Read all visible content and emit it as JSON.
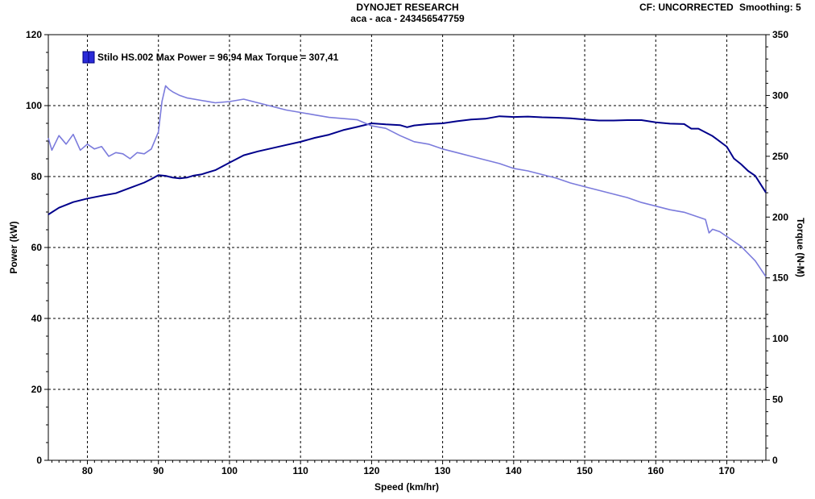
{
  "header": {
    "title": "DYNOJET RESEARCH",
    "subtitle": "aca - aca - 243456547759",
    "cf_text": "CF: UNCORRECTED",
    "smoothing_text": "Smoothing: 5"
  },
  "colors": {
    "power": "#00008b",
    "torque": "#7b7bdc",
    "grid": "#000000",
    "legend_swatch": "#2a2ad8"
  },
  "chart_data": {
    "type": "line",
    "title": "DYNOJET RESEARCH",
    "xlabel": "Speed (km/hr)",
    "ylabel": "Power (kW)",
    "y2label": "Torque (N-M)",
    "xlim": [
      74.5,
      175.5
    ],
    "ylim": [
      0,
      120
    ],
    "y2lim": [
      0,
      350
    ],
    "xticks": [
      80,
      90,
      100,
      110,
      120,
      130,
      140,
      150,
      160,
      170
    ],
    "yticks": [
      0,
      20,
      40,
      60,
      80,
      100,
      120
    ],
    "y2ticks": [
      0,
      50,
      100,
      150,
      200,
      250,
      300,
      350
    ],
    "grid": true,
    "legend": {
      "position": "top-left",
      "text": "Stilo HS.002 Max Power = 96,94 Max Torque = 307,41"
    },
    "series": [
      {
        "name": "Power",
        "axis": "left",
        "x": [
          74.5,
          76,
          78,
          80,
          82,
          84,
          86,
          88,
          89,
          90,
          91,
          92,
          93,
          94,
          95,
          96,
          98,
          100,
          102,
          104,
          106,
          108,
          110,
          112,
          114,
          116,
          118,
          120,
          122,
          124,
          125,
          126,
          128,
          130,
          132,
          134,
          136,
          138,
          140,
          142,
          144,
          146,
          148,
          150,
          152,
          154,
          156,
          158,
          160,
          162,
          164,
          165,
          166,
          168,
          170,
          171,
          172,
          173,
          174,
          175.5
        ],
        "y": [
          69.3,
          71.2,
          72.8,
          73.8,
          74.6,
          75.3,
          76.8,
          78.3,
          79.3,
          80.4,
          80.2,
          79.7,
          79.5,
          79.7,
          80.3,
          80.6,
          81.8,
          83.9,
          86.0,
          87.1,
          88.0,
          88.9,
          89.8,
          90.9,
          91.8,
          93.1,
          94.0,
          95.0,
          94.7,
          94.5,
          93.9,
          94.4,
          94.8,
          95.0,
          95.6,
          96.1,
          96.3,
          97.0,
          96.8,
          96.9,
          96.7,
          96.6,
          96.4,
          96.1,
          95.8,
          95.8,
          95.9,
          95.9,
          95.3,
          94.9,
          94.8,
          93.5,
          93.5,
          91.4,
          88.4,
          85.1,
          83.5,
          81.6,
          80.2,
          75.5
        ]
      },
      {
        "name": "Torque",
        "axis": "right",
        "x": [
          74.5,
          75,
          76,
          77,
          78,
          79,
          80,
          81,
          82,
          83,
          84,
          85,
          86,
          87,
          88,
          89,
          90,
          90.5,
          91,
          91.5,
          92,
          93,
          94,
          96,
          98,
          100,
          102,
          104,
          106,
          108,
          110,
          112,
          114,
          116,
          118,
          120,
          122,
          124,
          126,
          128,
          130,
          132,
          134,
          136,
          138,
          140,
          142,
          144,
          146,
          148,
          150,
          152,
          154,
          156,
          158,
          160,
          162,
          164,
          166,
          167,
          167.5,
          168,
          169,
          170,
          172,
          174,
          175.5
        ],
        "y": [
          265,
          255,
          267,
          260,
          268,
          255,
          260,
          256,
          258,
          250,
          253,
          252,
          248,
          253,
          252,
          256,
          270,
          295,
          308,
          305,
          303,
          300,
          298,
          296,
          294,
          295,
          297,
          294,
          291,
          288,
          286,
          284,
          282,
          281,
          280,
          275,
          273,
          267,
          262,
          260,
          256,
          253,
          250,
          247,
          244,
          240,
          238,
          235,
          232,
          228,
          225,
          222,
          219,
          216,
          212,
          209,
          206,
          204,
          200,
          198,
          187,
          190,
          188,
          184,
          176,
          164,
          151
        ]
      }
    ]
  }
}
